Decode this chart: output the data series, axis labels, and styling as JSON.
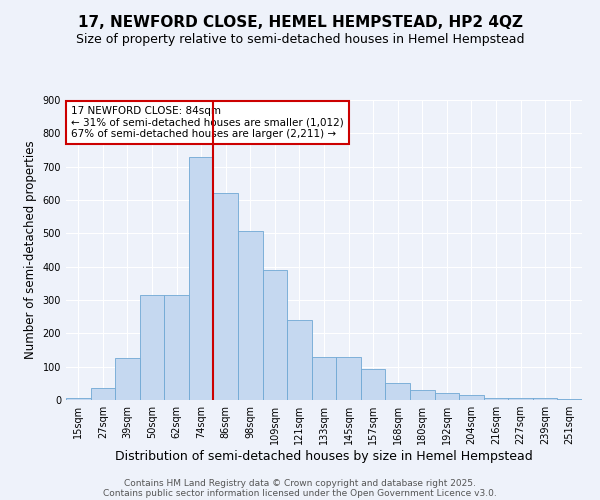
{
  "title": "17, NEWFORD CLOSE, HEMEL HEMPSTEAD, HP2 4QZ",
  "subtitle": "Size of property relative to semi-detached houses in Hemel Hempstead",
  "xlabel": "Distribution of semi-detached houses by size in Hemel Hempstead",
  "ylabel": "Number of semi-detached properties",
  "bar_labels": [
    "15sqm",
    "27sqm",
    "39sqm",
    "50sqm",
    "62sqm",
    "74sqm",
    "86sqm",
    "98sqm",
    "109sqm",
    "121sqm",
    "133sqm",
    "145sqm",
    "157sqm",
    "168sqm",
    "180sqm",
    "192sqm",
    "204sqm",
    "216sqm",
    "227sqm",
    "239sqm",
    "251sqm"
  ],
  "bar_heights": [
    5,
    35,
    125,
    315,
    315,
    730,
    620,
    507,
    390,
    240,
    128,
    128,
    93,
    50,
    30,
    22,
    15,
    5,
    5,
    5,
    2
  ],
  "bar_color": "#c5d8f0",
  "bar_edge_color": "#6fa8d4",
  "vline_x_index": 6,
  "vline_color": "#cc0000",
  "annotation_line1": "17 NEWFORD CLOSE: 84sqm",
  "annotation_line2": "← 31% of semi-detached houses are smaller (1,012)",
  "annotation_line3": "67% of semi-detached houses are larger (2,211) →",
  "annotation_box_color": "#cc0000",
  "annotation_box_fill": "white",
  "ylim": [
    0,
    900
  ],
  "yticks": [
    0,
    100,
    200,
    300,
    400,
    500,
    600,
    700,
    800,
    900
  ],
  "footer_line1": "Contains HM Land Registry data © Crown copyright and database right 2025.",
  "footer_line2": "Contains public sector information licensed under the Open Government Licence v3.0.",
  "bg_color": "#eef2fa",
  "grid_color": "white",
  "title_fontsize": 11,
  "subtitle_fontsize": 9,
  "xlabel_fontsize": 9,
  "ylabel_fontsize": 8.5,
  "tick_fontsize": 7,
  "annotation_fontsize": 7.5,
  "footer_fontsize": 6.5
}
